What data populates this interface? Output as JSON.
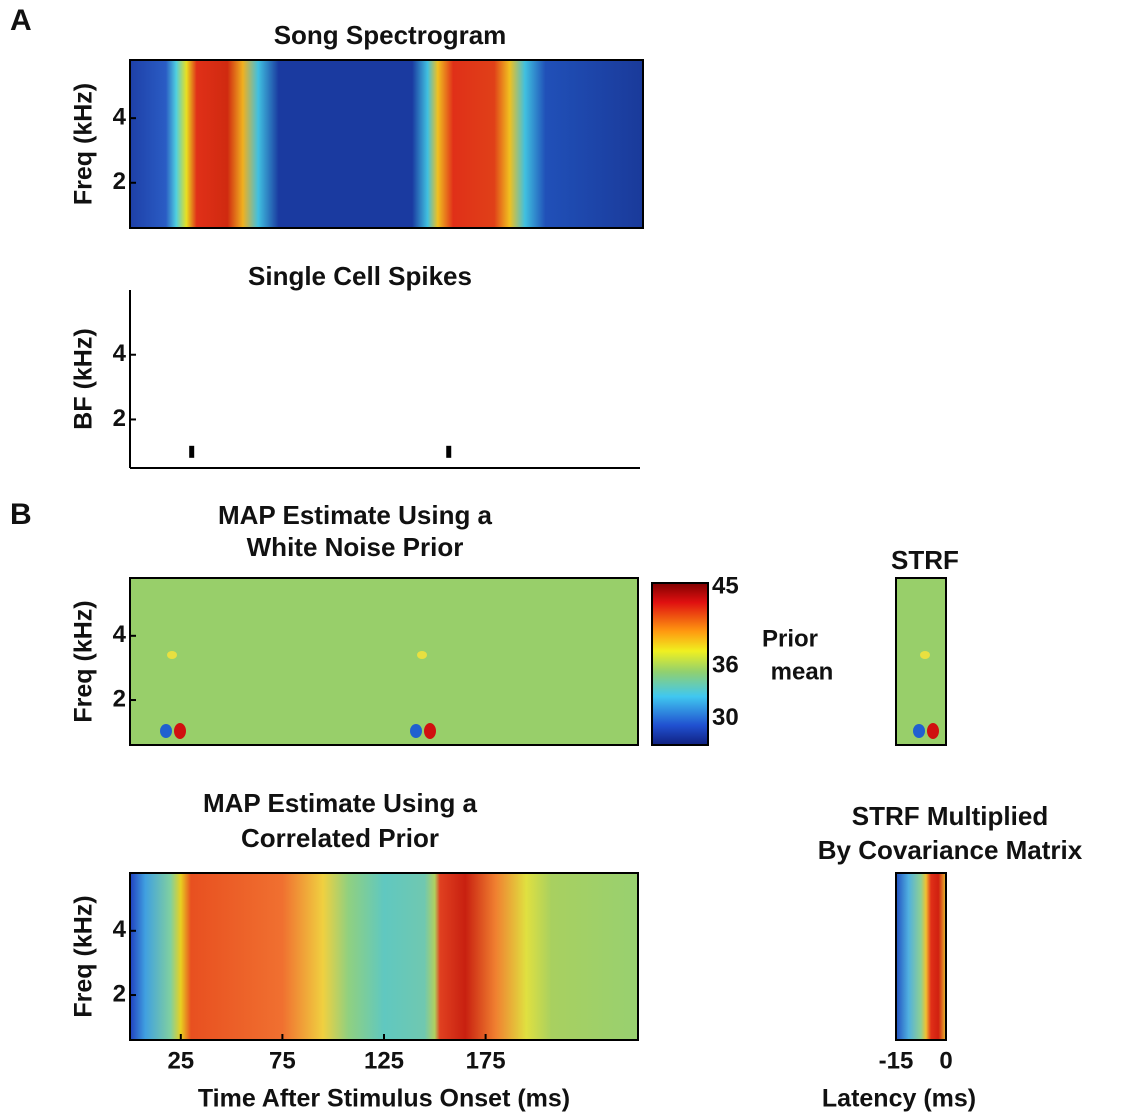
{
  "chart_data": [
    {
      "type": "heatmap",
      "panel_label": "A",
      "title": [
        "Song Spectrogram"
      ],
      "ylabel": "Freq (kHz)",
      "ylim": [
        0.6,
        5.8
      ],
      "yticks": [
        2,
        4
      ],
      "xlim": [
        0,
        250
      ]
    },
    {
      "type": "raster",
      "title": [
        "Single Cell Spikes"
      ],
      "ylabel": "BF (kHz)",
      "ylim": [
        0.5,
        6
      ],
      "yticks": [
        2,
        4
      ],
      "xlim": [
        0,
        250
      ],
      "x": [
        30,
        156
      ],
      "values": [
        1,
        1
      ],
      "color": "#000000"
    },
    {
      "type": "heatmap",
      "panel_label": "B",
      "title": [
        "MAP Estimate Using a",
        "White Noise Prior"
      ],
      "ylabel": "Freq (kHz)",
      "ylim": [
        0.6,
        5.8
      ],
      "yticks": [
        2,
        4
      ],
      "xlim": [
        0,
        250
      ]
    },
    {
      "type": "colorbar",
      "label": [
        "Prior",
        "mean"
      ],
      "ylim": [
        27,
        45.5
      ],
      "yticks": [
        30,
        36,
        45
      ]
    },
    {
      "type": "heatmap",
      "title": [
        "STRF"
      ],
      "ylim": [
        0.6,
        5.8
      ],
      "xlim": [
        -15,
        0
      ]
    },
    {
      "type": "heatmap",
      "title": [
        "MAP Estimate Using a",
        "Correlated Prior"
      ],
      "ylabel": "Freq (kHz)",
      "ylim": [
        0.6,
        5.8
      ],
      "yticks": [
        2,
        4
      ],
      "xlim": [
        0,
        250
      ],
      "xticks": [
        25,
        75,
        125,
        175
      ],
      "xlabel": "Time After Stimulus Onset (ms)"
    },
    {
      "type": "heatmap",
      "title": [
        "STRF Multiplied",
        "By Covariance Matrix"
      ],
      "ylim": [
        0.6,
        5.8
      ],
      "xlim": [
        -15,
        0
      ],
      "xticks": [
        -15,
        0
      ],
      "xlabel": "Latency (ms)"
    }
  ]
}
